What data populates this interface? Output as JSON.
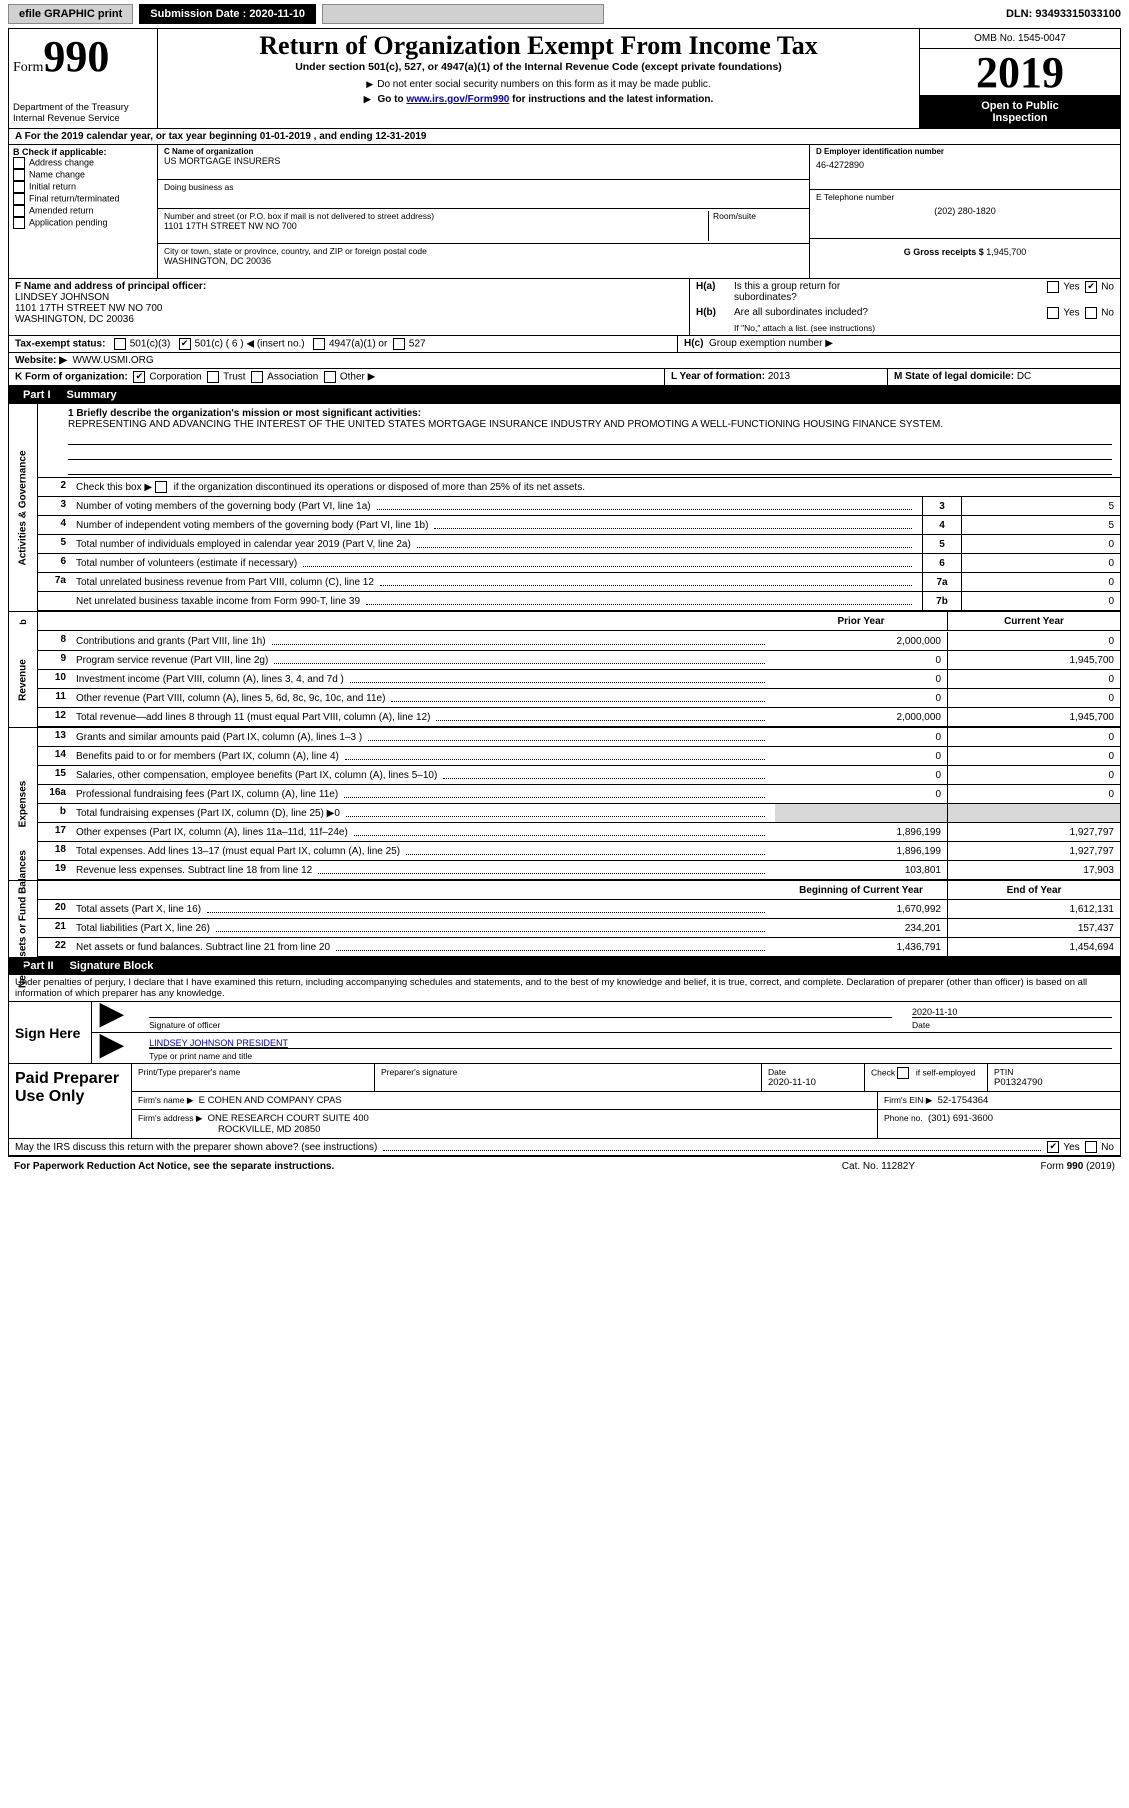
{
  "colors": {
    "black": "#000000",
    "white": "#ffffff",
    "grey_btn": "#d0d0d0",
    "grey_shade": "#d8d8d8",
    "link": "#0000cc"
  },
  "topbar": {
    "efile": "efile GRAPHIC print",
    "submission_label": "Submission Date : 2020-11-10",
    "dln": "DLN: 93493315033100"
  },
  "header": {
    "form_prefix": "Form",
    "form_number": "990",
    "department": "Department of the Treasury",
    "irs": "Internal Revenue Service",
    "title": "Return of Organization Exempt From Income Tax",
    "subtitle": "Under section 501(c), 527, or 4947(a)(1) of the Internal Revenue Code (except private foundations)",
    "no_ssn": "Do not enter social security numbers on this form as it may be made public.",
    "goto_prefix": "Go to ",
    "goto_link": "www.irs.gov/Form990",
    "goto_suffix": " for instructions and the latest information.",
    "omb": "OMB No. 1545-0047",
    "year": "2019",
    "open_public": "Open to Public",
    "inspection": "Inspection"
  },
  "line_A": "For the 2019 calendar year, or tax year beginning 01-01-2019    , and ending 12-31-2019",
  "B": {
    "heading": "B Check if applicable:",
    "opts": [
      "Address change",
      "Name change",
      "Initial return",
      "Final return/terminated",
      "Amended return",
      "Application pending"
    ]
  },
  "C": {
    "name_label": "C Name of organization",
    "name": "US MORTGAGE INSURERS",
    "dba_label": "Doing business as",
    "dba": "",
    "addr_label": "Number and street (or P.O. box if mail is not delivered to street address)",
    "room_label": "Room/suite",
    "addr": "1101 17TH STREET NW NO 700",
    "city_label": "City or town, state or province, country, and ZIP or foreign postal code",
    "city": "WASHINGTON, DC  20036"
  },
  "D": {
    "ein_label": "D Employer identification number",
    "ein": "46-4272890",
    "tele_label": "E Telephone number",
    "tele": "(202) 280-1820",
    "gross_label": "G Gross receipts $",
    "gross": "1,945,700"
  },
  "F": {
    "label": "F  Name and address of principal officer:",
    "name": "LINDSEY JOHNSON",
    "addr1": "1101 17TH STREET NW NO 700",
    "addr2": "WASHINGTON, DC  20036"
  },
  "H": {
    "a": "Is this a group return for",
    "a2": "subordinates?",
    "b": "Are all subordinates included?",
    "b_note": "If \"No,\" attach a list. (see instructions)",
    "c": "Group exemption number ▶",
    "yes": "Yes",
    "no": "No"
  },
  "I": {
    "label": "Tax-exempt status:",
    "opts": [
      "501(c)(3)",
      "501(c) ( 6 ) ◀ (insert no.)",
      "4947(a)(1) or",
      "527"
    ]
  },
  "J": {
    "label": "Website: ▶",
    "value": "WWW.USMI.ORG"
  },
  "K": {
    "label": "K Form of organization:",
    "opts": [
      "Corporation",
      "Trust",
      "Association",
      "Other ▶"
    ]
  },
  "LM": {
    "L_label": "L Year of formation:",
    "L_val": "2013",
    "M_label": "M State of legal domicile:",
    "M_val": "DC"
  },
  "partI": {
    "bar": "Part I",
    "bar_title": "Summary",
    "line1_label": "1  Briefly describe the organization's mission or most significant activities:",
    "mission": "REPRESENTING AND ADVANCING THE INTEREST OF THE UNITED STATES MORTGAGE INSURANCE INDUSTRY AND PROMOTING A WELL-FUNCTIONING HOUSING FINANCE SYSTEM.",
    "line2_label": "Check this box ▶",
    "line2_text": "if the organization discontinued its operations or disposed of more than 25% of its net assets.",
    "prior_year": "Prior Year",
    "current_year": "Current Year",
    "beg_year": "Beginning of Current Year",
    "end_year": "End of Year"
  },
  "groups": {
    "activities": {
      "side": "Activities & Governance",
      "rows": [
        {
          "n": "3",
          "t": "Number of voting members of the governing body (Part VI, line 1a)",
          "box": "3",
          "v": "5"
        },
        {
          "n": "4",
          "t": "Number of independent voting members of the governing body (Part VI, line 1b)",
          "box": "4",
          "v": "5"
        },
        {
          "n": "5",
          "t": "Total number of individuals employed in calendar year 2019 (Part V, line 2a)",
          "box": "5",
          "v": "0"
        },
        {
          "n": "6",
          "t": "Total number of volunteers (estimate if necessary)",
          "box": "6",
          "v": "0"
        },
        {
          "n": "7a",
          "t": "Total unrelated business revenue from Part VIII, column (C), line 12",
          "box": "7a",
          "v": "0"
        },
        {
          "n": "",
          "t": "Net unrelated business taxable income from Form 990-T, line 39",
          "box": "7b",
          "v": "0"
        }
      ]
    },
    "revenue": {
      "side": "Revenue",
      "rows": [
        {
          "n": "8",
          "t": "Contributions and grants (Part VIII, line 1h)",
          "py": "2,000,000",
          "cy": "0"
        },
        {
          "n": "9",
          "t": "Program service revenue (Part VIII, line 2g)",
          "py": "0",
          "cy": "1,945,700"
        },
        {
          "n": "10",
          "t": "Investment income (Part VIII, column (A), lines 3, 4, and 7d )",
          "py": "0",
          "cy": "0"
        },
        {
          "n": "11",
          "t": "Other revenue (Part VIII, column (A), lines 5, 6d, 8c, 9c, 10c, and 11e)",
          "py": "0",
          "cy": "0"
        },
        {
          "n": "12",
          "t": "Total revenue—add lines 8 through 11 (must equal Part VIII, column (A), line 12)",
          "py": "2,000,000",
          "cy": "1,945,700"
        }
      ]
    },
    "expenses": {
      "side": "Expenses",
      "rows": [
        {
          "n": "13",
          "t": "Grants and similar amounts paid (Part IX, column (A), lines 1–3 )",
          "py": "0",
          "cy": "0"
        },
        {
          "n": "14",
          "t": "Benefits paid to or for members (Part IX, column (A), line 4)",
          "py": "0",
          "cy": "0"
        },
        {
          "n": "15",
          "t": "Salaries, other compensation, employee benefits (Part IX, column (A), lines 5–10)",
          "py": "0",
          "cy": "0"
        },
        {
          "n": "16a",
          "t": "Professional fundraising fees (Part IX, column (A), line 11e)",
          "py": "0",
          "cy": "0"
        },
        {
          "n": "b",
          "t": "Total fundraising expenses (Part IX, column (D), line 25) ▶0",
          "py": "",
          "cy": "",
          "shade": true
        },
        {
          "n": "17",
          "t": "Other expenses (Part IX, column (A), lines 11a–11d, 11f–24e)",
          "py": "1,896,199",
          "cy": "1,927,797"
        },
        {
          "n": "18",
          "t": "Total expenses. Add lines 13–17 (must equal Part IX, column (A), line 25)",
          "py": "1,896,199",
          "cy": "1,927,797"
        },
        {
          "n": "19",
          "t": "Revenue less expenses. Subtract line 18 from line 12",
          "py": "103,801",
          "cy": "17,903"
        }
      ]
    },
    "netassets": {
      "side": "Net Assets or Fund Balances",
      "rows": [
        {
          "n": "20",
          "t": "Total assets (Part X, line 16)",
          "py": "1,670,992",
          "cy": "1,612,131"
        },
        {
          "n": "21",
          "t": "Total liabilities (Part X, line 26)",
          "py": "234,201",
          "cy": "157,437"
        },
        {
          "n": "22",
          "t": "Net assets or fund balances. Subtract line 21 from line 20",
          "py": "1,436,791",
          "cy": "1,454,694"
        }
      ]
    }
  },
  "partII": {
    "bar": "Part II",
    "bar_title": "Signature Block",
    "perjury": "Under penalties of perjury, I declare that I have examined this return, including accompanying schedules and statements, and to the best of my knowledge and belief, it is true, correct, and complete. Declaration of preparer (other than officer) is based on all information of which preparer has any knowledge."
  },
  "sign": {
    "heading": "Sign Here",
    "sig_of_officer": "Signature of officer",
    "date": "2020-11-10",
    "date_label": "Date",
    "name_title": "LINDSEY JOHNSON  PRESIDENT",
    "name_title_label": "Type or print name and title"
  },
  "preparer": {
    "heading": "Paid Preparer Use Only",
    "print_name_label": "Print/Type preparer's name",
    "sig_label": "Preparer's signature",
    "date_label": "Date",
    "date": "2020-11-10",
    "check_label": "Check",
    "self_emp": "if self-employed",
    "ptin_label": "PTIN",
    "ptin": "P01324790",
    "firm_name_label": "Firm's name   ▶",
    "firm_name": "E COHEN AND COMPANY CPAS",
    "firm_ein_label": "Firm's EIN ▶",
    "firm_ein": "52-1754364",
    "firm_addr_label": "Firm's address ▶",
    "firm_addr1": "ONE RESEARCH COURT SUITE 400",
    "firm_addr2": "ROCKVILLE, MD  20850",
    "phone_label": "Phone no.",
    "phone": "(301) 691-3600"
  },
  "discuss": {
    "text": "May the IRS discuss this return with the preparer shown above? (see instructions)",
    "yes": "Yes",
    "no": "No"
  },
  "footer": {
    "pra": "For Paperwork Reduction Act Notice, see the separate instructions.",
    "cat": "Cat. No. 11282Y",
    "form": "Form 990 (2019)"
  }
}
